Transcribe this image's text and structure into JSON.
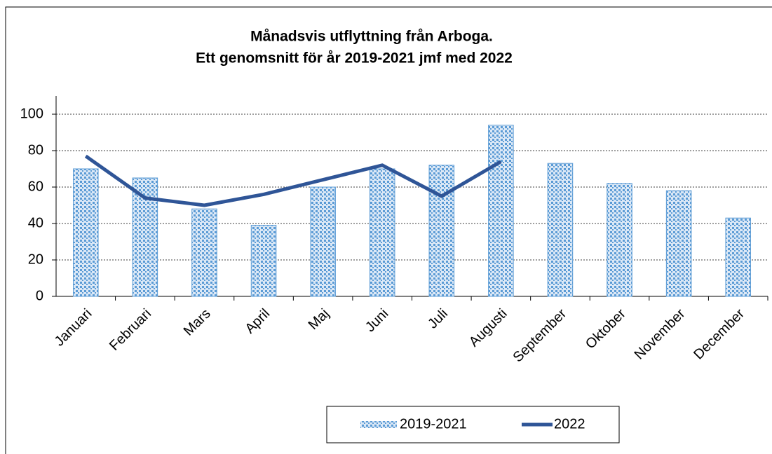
{
  "chart_data": {
    "type": "bar_line",
    "title": "Månadsvis utflyttning från Arboga.",
    "subtitle": "Ett genomsnitt för år 2019-2021 jmf med 2022",
    "categories": [
      "Januari",
      "Februari",
      "Mars",
      "April",
      "Maj",
      "Juni",
      "Juli",
      "Augusti",
      "September",
      "Oktober",
      "November",
      "December"
    ],
    "series": [
      {
        "name": "2019-2021",
        "type": "bar",
        "color": "#5b9bd5",
        "values": [
          70,
          65,
          48,
          39,
          60,
          70,
          72,
          94,
          73,
          62,
          58,
          43
        ]
      },
      {
        "name": "2022",
        "type": "line",
        "color": "#2f5597",
        "values": [
          77,
          54,
          50,
          56,
          64,
          72,
          55,
          74,
          null,
          null,
          null,
          null
        ]
      }
    ],
    "ylim": [
      0,
      110
    ],
    "yticks": [
      0,
      20,
      40,
      60,
      80,
      100
    ],
    "grid": true,
    "legend": "bottom"
  }
}
